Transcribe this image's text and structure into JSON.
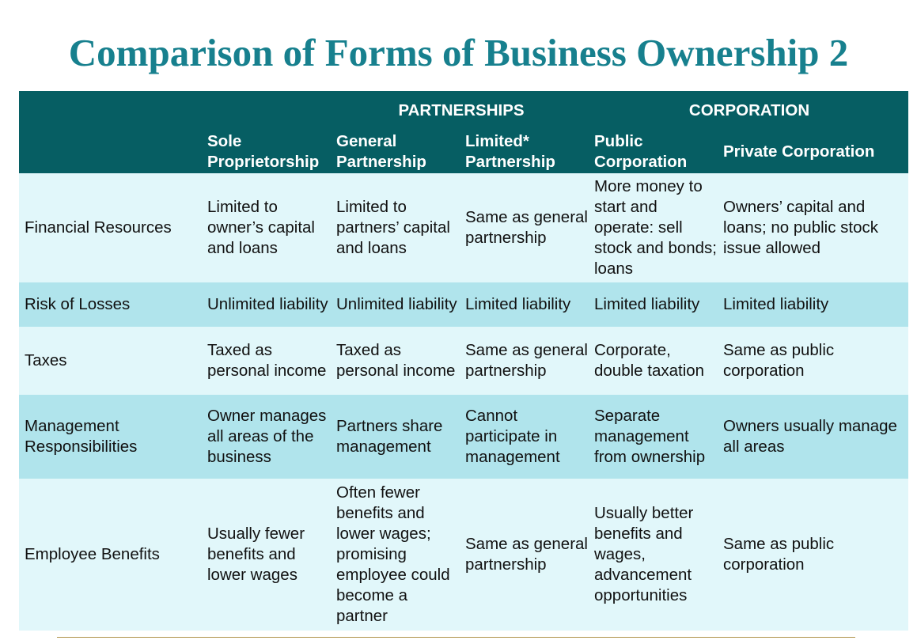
{
  "title": "Comparison of Forms of Business Ownership 2",
  "groups": {
    "partnerships": "PARTNERSHIPS",
    "corporation": "CORPORATION"
  },
  "columns": {
    "sole": "Sole Proprietorship",
    "general": "General Partnership",
    "limited": "Limited* Partnership",
    "public": "Public Corporation",
    "private": "Private Corporation"
  },
  "rows": [
    {
      "label": "Financial Resources",
      "sole": "Limited to owner’s capital and loans",
      "general": "Limited to partners’ capital and loans",
      "limited": "Same as general partnership",
      "public": "More money to start and operate: sell stock and bonds; loans",
      "private": "Owners’ capital and loans; no public stock issue allowed"
    },
    {
      "label": "Risk of Losses",
      "sole": "Unlimited liability",
      "general": "Unlimited liability",
      "limited": "Limited liability",
      "public": "Limited liability",
      "private": "Limited liability"
    },
    {
      "label": "Taxes",
      "sole": "Taxed as personal income",
      "general": "Taxed as personal income",
      "limited": "Same as general partnership",
      "public": "Corporate, double taxation",
      "private": "Same as public corporation"
    },
    {
      "label": "Management Responsibilities",
      "sole": "Owner manages all areas of the business",
      "general": "Partners share management",
      "limited": "Cannot participate in management",
      "public": "Separate management from ownership",
      "private": "Owners usually manage all areas"
    },
    {
      "label": "Employee Benefits",
      "sole": "Usually fewer benefits and lower wages",
      "general": "Often fewer benefits and lower wages; promising employee could become a partner",
      "limited": "Same as general partnership",
      "public": "Usually better benefits and wages, advancement opportunities",
      "private": "Same as public corporation"
    }
  ],
  "colors": {
    "title": "#17808e",
    "header_bg": "#065e63",
    "row_light": "#e1f7fa",
    "row_dark": "#b0e4ec",
    "rule": "#b0924a"
  }
}
